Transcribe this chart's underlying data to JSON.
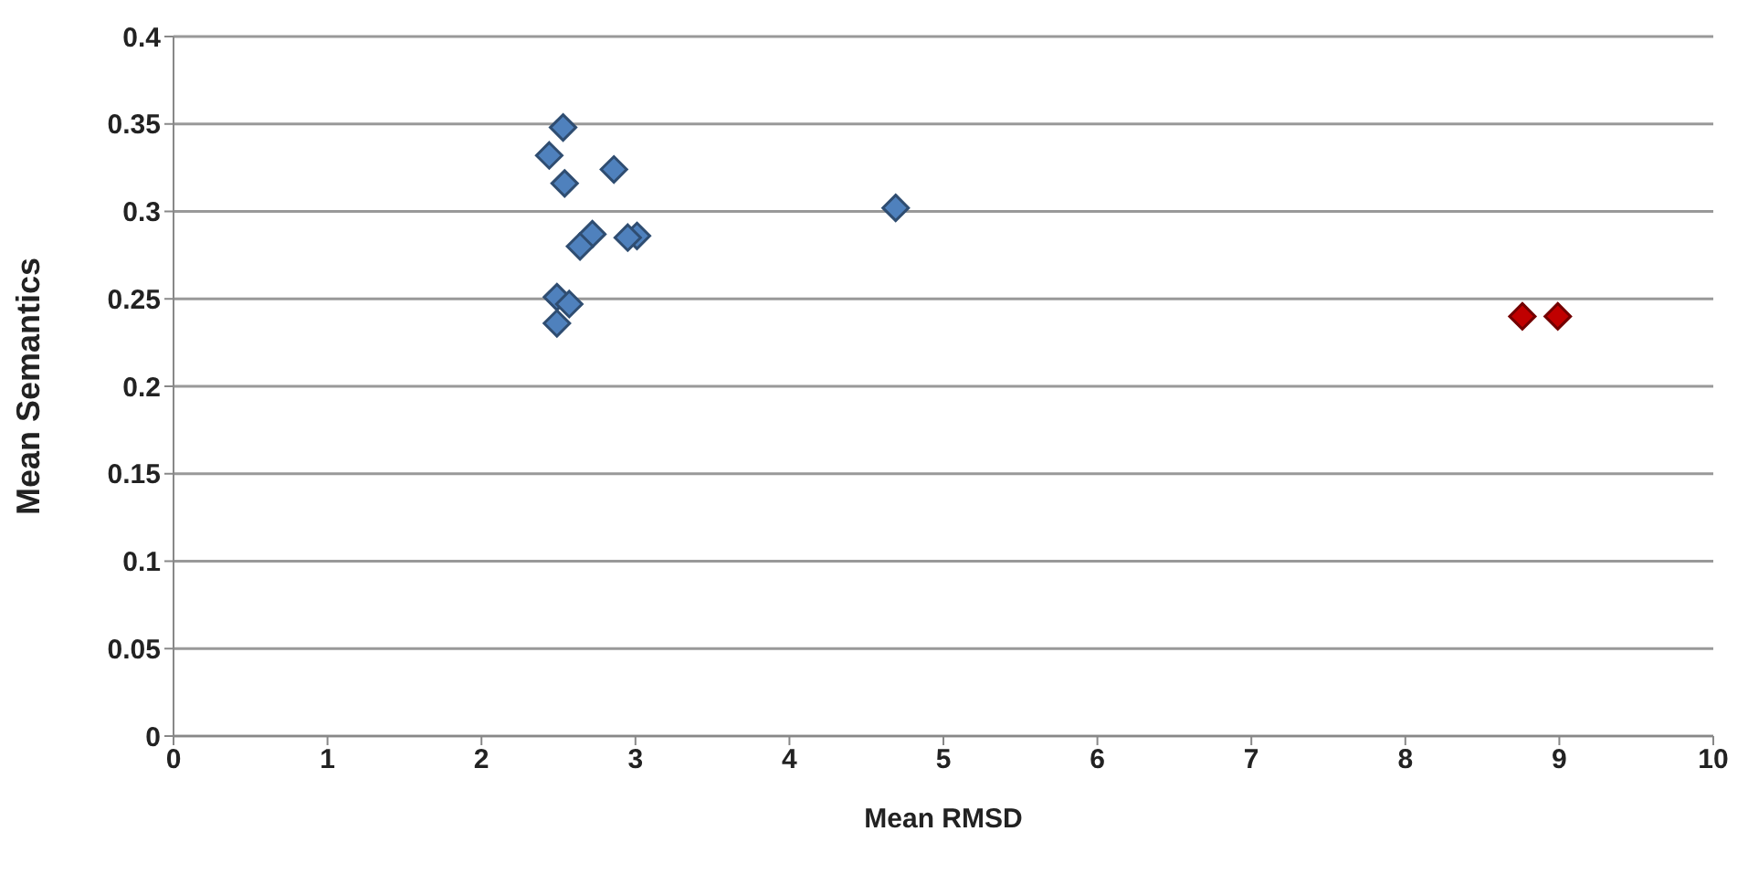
{
  "chart_data": {
    "type": "scatter",
    "xlabel": "Mean RMSD",
    "ylabel": "Mean Semantics",
    "xlim": [
      0,
      10
    ],
    "xticks": [
      0,
      1,
      2,
      3,
      4,
      5,
      6,
      7,
      8,
      9,
      10
    ],
    "ylim": [
      0,
      0.4
    ],
    "yticks": [
      0,
      0.05,
      0.1,
      0.15,
      0.2,
      0.25,
      0.3,
      0.35,
      0.4
    ],
    "grid": "y",
    "marker": "diamond",
    "series": [
      {
        "color": "#4f81bd",
        "x": [
          2.53,
          2.44,
          2.54,
          2.86,
          4.69,
          2.72,
          2.64,
          3.01,
          2.95,
          2.49,
          2.57,
          2.49
        ],
        "values": [
          0.348,
          0.332,
          0.316,
          0.324,
          0.302,
          0.287,
          0.28,
          0.286,
          0.285,
          0.251,
          0.247,
          0.236
        ]
      },
      {
        "color": "#c00000",
        "x": [
          8.76,
          8.99
        ],
        "values": [
          0.24,
          0.24
        ]
      }
    ]
  }
}
